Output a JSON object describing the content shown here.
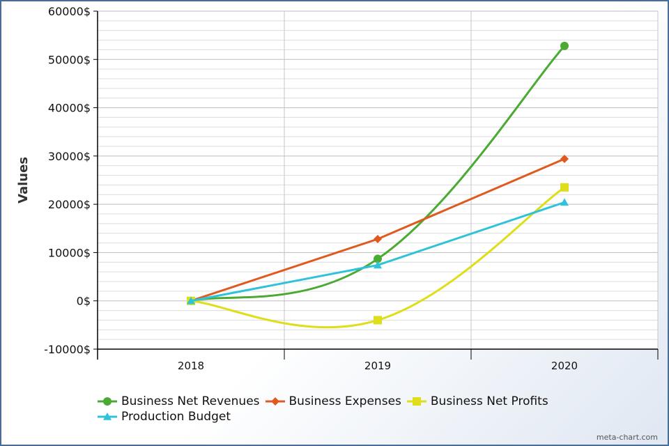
{
  "chart_data": {
    "type": "line",
    "title": "",
    "xlabel": "",
    "ylabel": "Values",
    "categories": [
      "2018",
      "2019",
      "2020"
    ],
    "ylim": [
      -10000,
      60000
    ],
    "y_tick_values": [
      -10000,
      0,
      10000,
      20000,
      30000,
      40000,
      50000,
      60000
    ],
    "y_tick_labels": [
      "-10000$",
      "0$",
      "10000$",
      "20000$",
      "30000$",
      "40000$",
      "50000$",
      "60000$"
    ],
    "grid": true,
    "legend_position": "bottom",
    "series": [
      {
        "name": "Business Net Revenues",
        "values": [
          0,
          8700,
          52800
        ],
        "color": "#4aaa34",
        "marker": "circle",
        "smooth": true
      },
      {
        "name": "Business Expenses",
        "values": [
          0,
          12800,
          29400
        ],
        "color": "#e05a20",
        "marker": "diamond",
        "smooth": false
      },
      {
        "name": "Business Net Profits",
        "values": [
          0,
          -4000,
          23500
        ],
        "color": "#dede1a",
        "marker": "square",
        "smooth": true
      },
      {
        "name": "Production Budget",
        "values": [
          0,
          7400,
          20400
        ],
        "color": "#2fc2db",
        "marker": "triangle",
        "smooth": false
      }
    ]
  },
  "watermark": "meta-chart.com"
}
